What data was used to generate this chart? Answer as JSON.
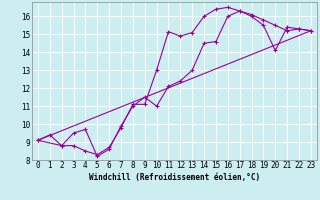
{
  "background_color": "#cceef0",
  "line_color": "#990099",
  "marker_color": "#990099",
  "grid_color": "#ffffff",
  "xlabel": "Windchill (Refroidissement éolien,°C)",
  "xlabel_fontsize": 5.5,
  "tick_fontsize": 5.5,
  "xlim": [
    -0.5,
    23.5
  ],
  "ylim": [
    8,
    16.8
  ],
  "yticks": [
    8,
    9,
    10,
    11,
    12,
    13,
    14,
    15,
    16
  ],
  "xticks": [
    0,
    1,
    2,
    3,
    4,
    5,
    6,
    7,
    8,
    9,
    10,
    11,
    12,
    13,
    14,
    15,
    16,
    17,
    18,
    19,
    20,
    21,
    22,
    23
  ],
  "line1_x": [
    0,
    1,
    2,
    3,
    4,
    5,
    6,
    7,
    8,
    9,
    10,
    11,
    12,
    13,
    14,
    15,
    16,
    17,
    18,
    19,
    20,
    21,
    22,
    23
  ],
  "line1_y": [
    9.1,
    9.4,
    8.8,
    8.8,
    8.5,
    8.3,
    8.7,
    9.8,
    11.1,
    11.1,
    13.0,
    15.15,
    14.9,
    15.1,
    16.0,
    16.4,
    16.5,
    16.3,
    16.1,
    15.8,
    15.5,
    15.2,
    15.3,
    15.2
  ],
  "line2_x": [
    0,
    2,
    3,
    4,
    5,
    6,
    7,
    8,
    9,
    10,
    11,
    12,
    13,
    14,
    15,
    16,
    17,
    18,
    19,
    20,
    21,
    22,
    23
  ],
  "line2_y": [
    9.1,
    8.8,
    9.5,
    9.7,
    8.2,
    8.6,
    9.9,
    11.0,
    11.5,
    11.0,
    12.1,
    12.4,
    13.0,
    14.5,
    14.6,
    16.0,
    16.3,
    16.0,
    15.5,
    14.1,
    15.4,
    15.3,
    15.2
  ],
  "line3_x": [
    0,
    23
  ],
  "line3_y": [
    9.1,
    15.2
  ]
}
